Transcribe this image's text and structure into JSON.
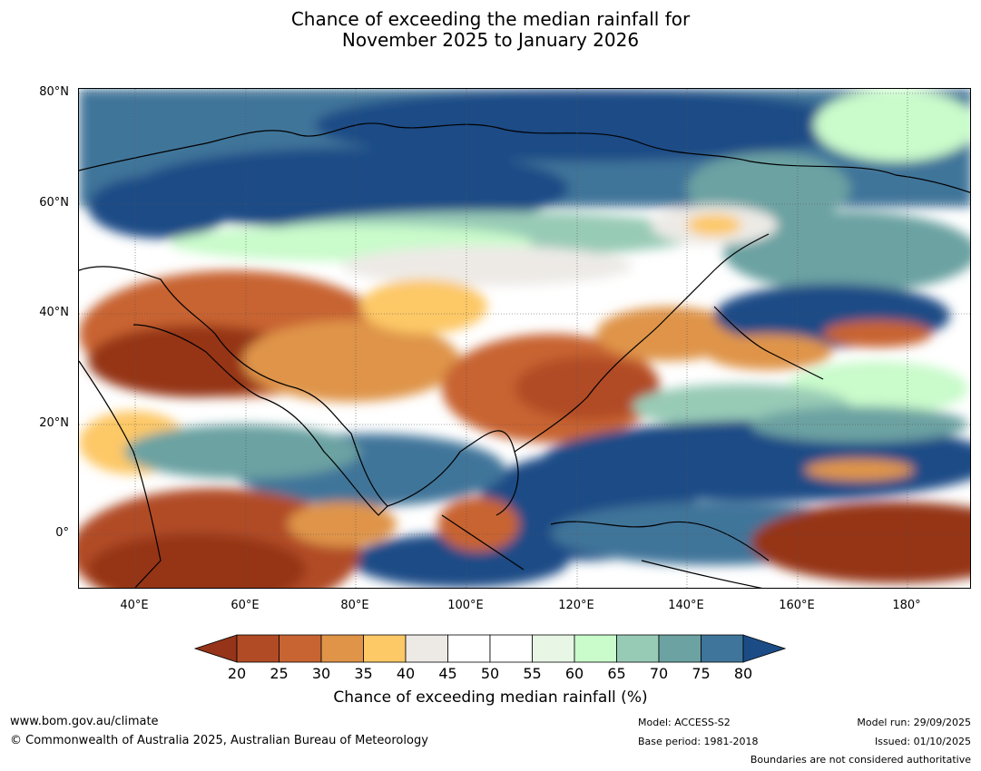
{
  "title": {
    "line1": "Chance of exceeding the median rainfall for",
    "line2": "November 2025 to January 2026"
  },
  "map": {
    "lat_labels": [
      "80°N",
      "60°N",
      "40°N",
      "20°N",
      "0°"
    ],
    "lon_labels": [
      "40°E",
      "60°E",
      "80°E",
      "100°E",
      "120°E",
      "140°E",
      "160°E",
      "180°"
    ]
  },
  "colorbar": {
    "ticks": [
      "20",
      "25",
      "30",
      "35",
      "40",
      "45",
      "50",
      "55",
      "60",
      "65",
      "70",
      "75",
      "80"
    ],
    "colors": [
      "#953419",
      "#b14b26",
      "#c86432",
      "#df9448",
      "#fdc866",
      "#edeae6",
      "#ffffff",
      "#ffffff",
      "#e8f6e6",
      "#c9fbcb",
      "#98cbb6",
      "#6ca2a2",
      "#3f759a",
      "#1c4c86"
    ],
    "title": "Chance of exceeding median rainfall (%)"
  },
  "footer": {
    "website": "www.bom.gov.au/climate",
    "copyright": "© Commonwealth of Australia 2025, Australian Bureau of Meteorology",
    "model": "Model: ACCESS-S2",
    "base_period": "Base period: 1981-2018",
    "model_run": "Model run: 29/09/2025",
    "issued": "Issued: 01/10/2025",
    "disclaimer": "Boundaries are not considered authoritative"
  }
}
